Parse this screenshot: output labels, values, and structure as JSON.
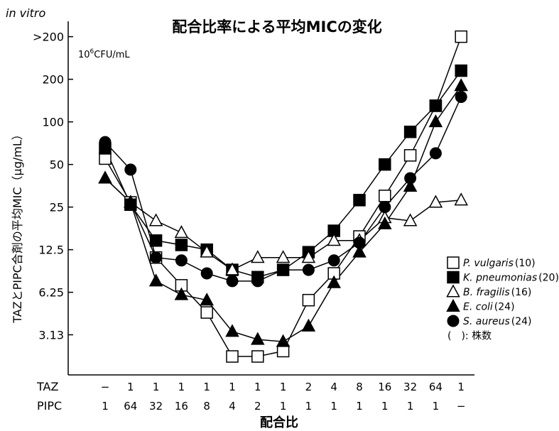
{
  "header": {
    "note": "in vitro",
    "unit_base": "10",
    "unit_exp": "6",
    "unit_rest": "CFU/mL"
  },
  "chart_data": {
    "type": "line",
    "title": "配合比率による平均MICの変化",
    "xlabel": "配合比",
    "ylabel": "TAZとPIPC合剤の平均MIC（μg/mL）",
    "y_scale": "log",
    "y_ticks": [
      {
        "value": 3.13,
        "label": "3.13"
      },
      {
        "value": 6.25,
        "label": "6.25"
      },
      {
        "value": 12.5,
        "label": "12.5"
      },
      {
        "value": 25,
        "label": "25"
      },
      {
        "value": 50,
        "label": "50"
      },
      {
        "value": 100,
        "label": "100"
      },
      {
        "value": 200,
        "label": "200"
      },
      {
        "value": 400,
        "label": ">200"
      }
    ],
    "ylim": [
      1.6,
      500
    ],
    "row_labels": {
      "taz": "TAZ",
      "pipc": "PIPC"
    },
    "taz": [
      "−",
      "1",
      "1",
      "1",
      "1",
      "1",
      "1",
      "1",
      "2",
      "4",
      "8",
      "16",
      "32",
      "64",
      "1"
    ],
    "pipc": [
      "1",
      "64",
      "32",
      "16",
      "8",
      "4",
      "2",
      "1",
      "1",
      "1",
      "1",
      "1",
      "1",
      "1",
      "−"
    ],
    "legend_placement": "right",
    "series": [
      {
        "name": "P. vulgaris",
        "count": "(10)",
        "marker": "open-square",
        "values": [
          55,
          27,
          11,
          7,
          4.5,
          2.2,
          2.2,
          2.4,
          5.5,
          8.5,
          15.5,
          30,
          58,
          130,
          400
        ]
      },
      {
        "name": "K. pneumonias",
        "count": "(20)",
        "marker": "filled-square",
        "values": [
          65,
          26,
          14.5,
          13.5,
          12.5,
          9,
          8,
          9,
          12,
          17,
          28,
          50,
          85,
          130,
          230
        ]
      },
      {
        "name": "B. fragilis",
        "count": "(16)",
        "marker": "open-triangle",
        "values": [
          40,
          27,
          20,
          16.5,
          12,
          9,
          11,
          11,
          11,
          14.5,
          14.5,
          21,
          20,
          27,
          28
        ]
      },
      {
        "name": "E. coli",
        "count": "(24)",
        "marker": "filled-triangle",
        "values": [
          40,
          27,
          7.5,
          6,
          5.5,
          3.3,
          2.9,
          2.8,
          3.6,
          7.3,
          12,
          19,
          35,
          100,
          180
        ]
      },
      {
        "name": "S. aureus",
        "count": "(24)",
        "marker": "filled-circle",
        "values": [
          72,
          46,
          11,
          10.5,
          8.5,
          7.5,
          7.5,
          9,
          9,
          10.5,
          14,
          25,
          40,
          60,
          150
        ]
      }
    ],
    "legend_note": "(　): 株数"
  }
}
